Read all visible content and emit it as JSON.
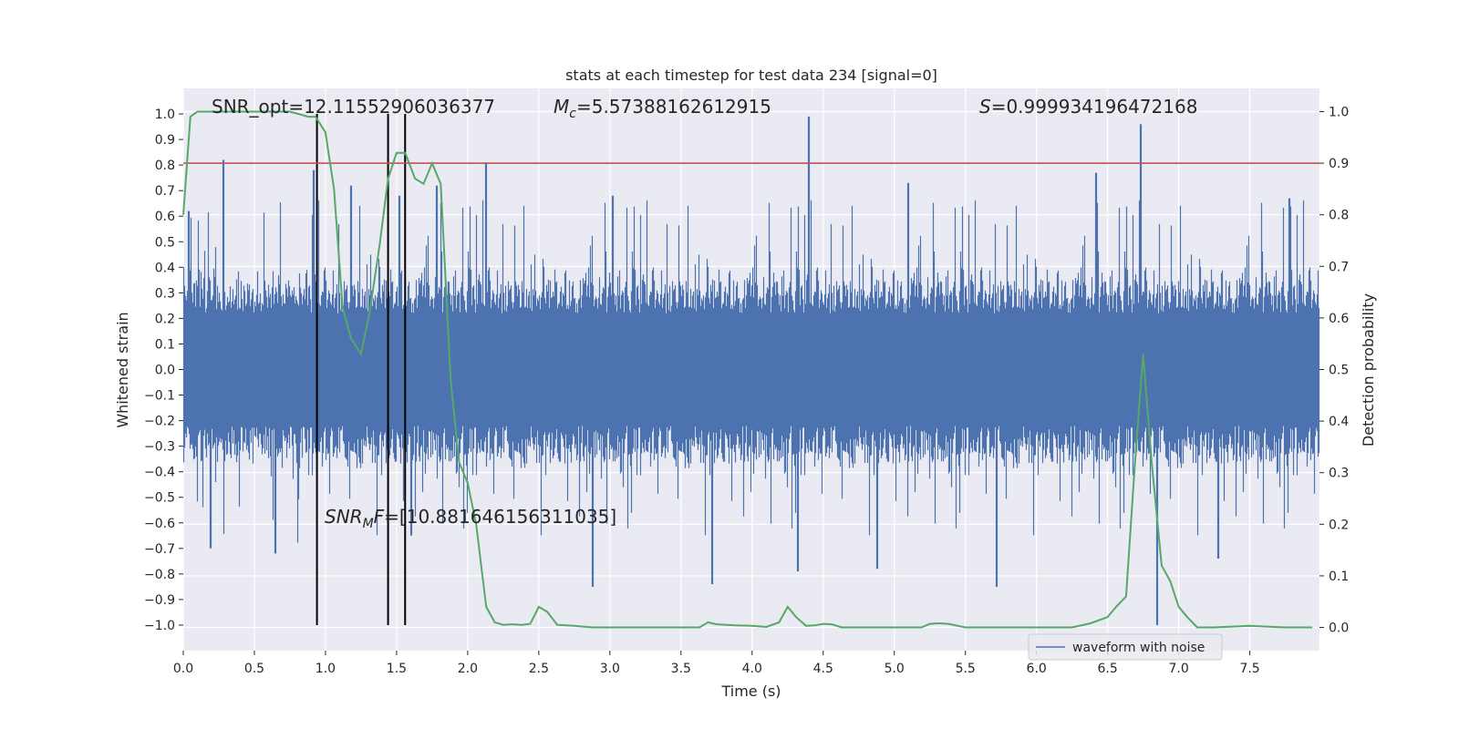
{
  "chart_data": {
    "type": "line",
    "title": "stats at each timestep for test data 234 [signal=0]",
    "xlabel": "Time (s)",
    "ylabel": "Whitened strain",
    "ylabel_right": "Detection probability",
    "xlim": [
      0.0,
      7.99
    ],
    "ylim": [
      -1.1,
      1.1
    ],
    "ylim_right": [
      -0.045,
      1.045
    ],
    "x_ticks": [
      0.0,
      0.5,
      1.0,
      1.5,
      2.0,
      2.5,
      3.0,
      3.5,
      4.0,
      4.5,
      5.0,
      5.5,
      6.0,
      6.5,
      7.0,
      7.5
    ],
    "x_tick_labels": [
      "0.0",
      "0.5",
      "1.0",
      "1.5",
      "2.0",
      "2.5",
      "3.0",
      "3.5",
      "4.0",
      "4.5",
      "5.0",
      "5.5",
      "6.0",
      "6.5",
      "7.0",
      "7.5"
    ],
    "y_ticks": [
      1.0,
      0.9,
      0.8,
      0.7,
      0.6,
      0.5,
      0.4,
      0.3,
      0.2,
      0.1,
      0.0,
      -0.1,
      -0.2,
      -0.3,
      -0.4,
      -0.5,
      -0.6,
      -0.7,
      -0.8,
      -0.9,
      -1.0
    ],
    "y_tick_labels": [
      "1.0",
      "0.9",
      "0.8",
      "0.7",
      "0.6",
      "0.5",
      "0.4",
      "0.3",
      "0.2",
      "0.1",
      "0.0",
      "−0.1",
      "−0.2",
      "−0.3",
      "−0.4",
      "−0.5",
      "−0.6",
      "−0.7",
      "−0.8",
      "−0.9",
      "−1.0"
    ],
    "y_ticks_right": [
      1.0,
      0.9,
      0.8,
      0.7,
      0.6,
      0.5,
      0.4,
      0.3,
      0.2,
      0.1,
      0.0
    ],
    "y_tick_labels_right": [
      "1.0",
      "0.9",
      "0.8",
      "0.7",
      "0.6",
      "0.5",
      "0.4",
      "0.3",
      "0.2",
      "0.1",
      "0.0"
    ],
    "grid": true,
    "legend": {
      "location": "lower-right",
      "entries": [
        "waveform with noise"
      ]
    },
    "colors": {
      "background": "#eaeaf2",
      "grid": "#ffffff",
      "waveform": "#4c72b0",
      "probability": "#55a868",
      "threshold": "#c44e52",
      "markers": "#000000",
      "text": "#262626"
    },
    "threshold_right": 0.9,
    "vertical_markers": {
      "x": [
        0.94,
        1.44,
        1.56
      ],
      "y_range": [
        -1.0,
        1.0
      ]
    },
    "annotations": {
      "snr_opt": "SNR_opt=12.11552906036377",
      "mc_symbol": "M",
      "mc_sub": "c",
      "mc_value": "=5.57388162612915",
      "s_symbol": "S",
      "s_value": "=0.999934196472168",
      "snr_mf_symbol": "SNR",
      "snr_mf_sub": "M",
      "snr_mf_tail": "F",
      "snr_mf_value": "=[10.881646156311035]"
    },
    "waveform": {
      "name": "waveform with noise",
      "sample_rate": 2048,
      "duration": 7.99,
      "typical_upper": 0.35,
      "typical_lower": -0.37,
      "spikes": [
        [
          0.04,
          0.62
        ],
        [
          0.28,
          0.82
        ],
        [
          0.19,
          -0.7
        ],
        [
          0.65,
          -0.72
        ],
        [
          0.92,
          0.78
        ],
        [
          1.18,
          0.72
        ],
        [
          1.52,
          0.68
        ],
        [
          1.6,
          -0.65
        ],
        [
          1.78,
          0.72
        ],
        [
          2.13,
          0.81
        ],
        [
          2.88,
          -0.85
        ],
        [
          3.02,
          0.68
        ],
        [
          3.72,
          -0.84
        ],
        [
          4.32,
          -0.79
        ],
        [
          4.4,
          0.99
        ],
        [
          4.88,
          -0.78
        ],
        [
          5.1,
          0.73
        ],
        [
          5.72,
          -0.85
        ],
        [
          6.42,
          0.77
        ],
        [
          6.73,
          0.96
        ],
        [
          6.85,
          -1.0
        ],
        [
          7.28,
          -0.74
        ],
        [
          7.78,
          0.67
        ]
      ]
    },
    "probability": {
      "name": "detection probability",
      "x": [
        0.0,
        0.05,
        0.1,
        0.25,
        0.5,
        0.75,
        0.88,
        0.93,
        1.0,
        1.06,
        1.12,
        1.18,
        1.25,
        1.31,
        1.38,
        1.44,
        1.5,
        1.56,
        1.63,
        1.69,
        1.75,
        1.81,
        1.88,
        1.94,
        2.0,
        2.06,
        2.13,
        2.19,
        2.25,
        2.31,
        2.38,
        2.44,
        2.5,
        2.56,
        2.63,
        2.75,
        2.88,
        3.0,
        3.25,
        3.5,
        3.63,
        3.69,
        3.75,
        3.88,
        4.0,
        4.1,
        4.19,
        4.25,
        4.31,
        4.38,
        4.44,
        4.5,
        4.56,
        4.63,
        4.75,
        5.0,
        5.19,
        5.25,
        5.31,
        5.38,
        5.5,
        5.63,
        6.0,
        6.25,
        6.38,
        6.5,
        6.56,
        6.63,
        6.69,
        6.75,
        6.81,
        6.88,
        6.94,
        7.0,
        7.06,
        7.13,
        7.25,
        7.5,
        7.75,
        7.94
      ],
      "values": [
        0.8,
        0.99,
        1.0,
        1.0,
        1.0,
        1.0,
        0.99,
        0.99,
        0.96,
        0.85,
        0.62,
        0.56,
        0.53,
        0.61,
        0.74,
        0.87,
        0.92,
        0.92,
        0.87,
        0.86,
        0.9,
        0.86,
        0.48,
        0.32,
        0.28,
        0.2,
        0.04,
        0.01,
        0.005,
        0.006,
        0.005,
        0.007,
        0.04,
        0.03,
        0.005,
        0.003,
        0.0,
        0.0,
        0.0,
        0.0,
        0.0,
        0.01,
        0.006,
        0.004,
        0.003,
        0.001,
        0.01,
        0.04,
        0.02,
        0.003,
        0.004,
        0.007,
        0.006,
        0.0,
        0.0,
        0.0,
        0.0,
        0.007,
        0.008,
        0.007,
        0.0,
        0.0,
        0.0,
        0.0,
        0.008,
        0.02,
        0.04,
        0.06,
        0.31,
        0.53,
        0.32,
        0.12,
        0.09,
        0.04,
        0.02,
        0.0,
        0.0,
        0.003,
        0.0,
        0.0
      ]
    }
  }
}
